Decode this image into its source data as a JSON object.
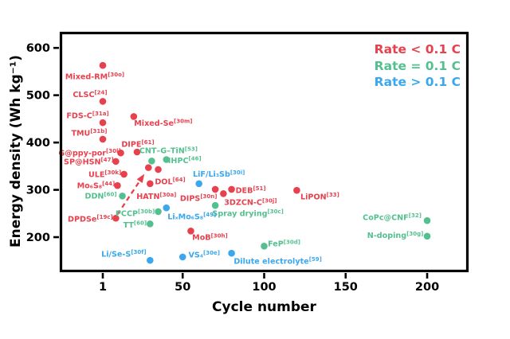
{
  "figure": {
    "x_title": "Cycle number",
    "y_title": "Energy density (Wh kg⁻¹)",
    "background": "#ffffff",
    "frame_color": "#000000"
  },
  "legend": {
    "items": [
      {
        "label": "Rate < 0.1 C",
        "color": "#e8414e"
      },
      {
        "label": "Rate = 0.1 C",
        "color": "#55c08f"
      },
      {
        "label": "Rate > 0.1 C",
        "color": "#3aa7ee"
      }
    ]
  },
  "chart_data": {
    "type": "scatter",
    "title": "",
    "xlabel": "Cycle number",
    "ylabel": "Energy density (Wh kg⁻¹)",
    "x_ticks": [
      1,
      50,
      100,
      150,
      200
    ],
    "y_ticks": [
      200,
      300,
      400,
      500,
      600
    ],
    "xlim": [
      -25.4,
      225.4
    ],
    "ylim": [
      126,
      634
    ],
    "grid": false,
    "legend_position": "top-right-inside",
    "series": [
      {
        "name": "Rate < 0.1 C",
        "color": "#e8414e",
        "points": [
          {
            "label": "Mixed-RM",
            "ref": "30o",
            "cycle": 1,
            "energy": 563,
            "dx": -10,
            "dy": 14
          },
          {
            "label": "CLSC",
            "ref": "24",
            "cycle": 1,
            "energy": 487,
            "dx": -16,
            "dy": -9
          },
          {
            "label": "FDS-C",
            "ref": "31a",
            "cycle": 1,
            "energy": 442,
            "dx": -19,
            "dy": -9
          },
          {
            "label": "Mixed-Se",
            "ref": "30m",
            "cycle": 20,
            "energy": 455,
            "dx": 37,
            "dy": 8
          },
          {
            "label": "TMU",
            "ref": "31b",
            "cycle": 1,
            "energy": 407,
            "dx": -17,
            "dy": -8
          },
          {
            "label": "DIPE",
            "ref": "61",
            "cycle": 22,
            "energy": 380,
            "dx": 1,
            "dy": -10
          },
          {
            "label": "G@ppy-por",
            "ref": "30l",
            "cycle": 12,
            "energy": 378,
            "dx": -39,
            "dy": 0
          },
          {
            "label": "SP@HSN",
            "ref": "47",
            "cycle": 9,
            "energy": 360,
            "dx": -34,
            "dy": 0
          },
          {
            "label": "ULE",
            "ref": "30k",
            "cycle": 14,
            "energy": 333,
            "dx": -24,
            "dy": 0
          },
          {
            "label": "Mo₆S₈",
            "ref": "44",
            "cycle": 10,
            "energy": 309,
            "dx": -27,
            "dy": 0
          },
          {
            "label": "",
            "ref": "",
            "cycle": 29,
            "energy": 347,
            "dx": 0,
            "dy": 0
          },
          {
            "label": "DOL",
            "ref": "64",
            "cycle": 35,
            "energy": 343,
            "dx": 15,
            "dy": 15
          },
          {
            "label": "HATN",
            "ref": "30a",
            "cycle": 30,
            "energy": 313,
            "dx": 8,
            "dy": 16
          },
          {
            "label": "DIPS",
            "ref": "30n",
            "cycle": 70,
            "energy": 301,
            "dx": -21,
            "dy": 11
          },
          {
            "label": "DEB",
            "ref": "51",
            "cycle": 80,
            "energy": 301,
            "dx": 24,
            "dy": 1
          },
          {
            "label": "3DZCN-C",
            "ref": "30j",
            "cycle": 75,
            "energy": 292,
            "dx": 34,
            "dy": 11
          },
          {
            "label": "LiPON",
            "ref": "33",
            "cycle": 120,
            "energy": 299,
            "dx": 29,
            "dy": 8
          },
          {
            "label": "MoB",
            "ref": "30h",
            "cycle": 55,
            "energy": 213,
            "dx": 24,
            "dy": 8
          },
          {
            "label": "DPDSe",
            "ref": "19c",
            "cycle": 9,
            "energy": 240,
            "dx": -32,
            "dy": 1
          }
        ]
      },
      {
        "name": "Rate = 0.1 C",
        "color": "#55c08f",
        "points": [
          {
            "label": "CNT–G–TiN",
            "ref": "53",
            "cycle": 31,
            "energy": 361,
            "dx": 21,
            "dy": -13
          },
          {
            "label": "IHPC",
            "ref": "46",
            "cycle": 40,
            "energy": 364,
            "dx": 23,
            "dy": 1
          },
          {
            "label": "DDN",
            "ref": "60",
            "cycle": 13,
            "energy": 287,
            "dx": -27,
            "dy": 0
          },
          {
            "label": "PCCP",
            "ref": "30b",
            "cycle": 35,
            "energy": 254,
            "dx": -29,
            "dy": 2
          },
          {
            "label": "TT",
            "ref": "60",
            "cycle": 30,
            "energy": 228,
            "dx": -19,
            "dy": 1
          },
          {
            "label": "Spray drying",
            "ref": "30c",
            "cycle": 70,
            "energy": 267,
            "dx": 41,
            "dy": 10
          },
          {
            "label": "FeP",
            "ref": "30d",
            "cycle": 100,
            "energy": 181,
            "dx": 25,
            "dy": -3
          },
          {
            "label": "CoPc@CNF",
            "ref": "32",
            "cycle": 200,
            "energy": 235,
            "dx": -44,
            "dy": -4
          },
          {
            "label": "N-doping",
            "ref": "30g",
            "cycle": 200,
            "energy": 202,
            "dx": -40,
            "dy": -1
          }
        ]
      },
      {
        "name": "Rate > 0.1 C",
        "color": "#3aa7ee",
        "points": [
          {
            "label": "LiF/Li₃Sb",
            "ref": "30i",
            "cycle": 60,
            "energy": 313,
            "dx": 25,
            "dy": -12
          },
          {
            "label": "LiₓMo₆S₈",
            "ref": "49",
            "cycle": 40,
            "energy": 262,
            "dx": 32,
            "dy": 11
          },
          {
            "label": "Li/Se-S",
            "ref": "30f",
            "cycle": 30,
            "energy": 151,
            "dx": -33,
            "dy": -8
          },
          {
            "label": "VS₄",
            "ref": "30e",
            "cycle": 50,
            "energy": 158,
            "dx": 27,
            "dy": -3
          },
          {
            "label": "Dilute electrolyte",
            "ref": "59",
            "cycle": 80,
            "energy": 166,
            "dx": 58,
            "dy": 10
          }
        ]
      }
    ],
    "annotation_arrow": {
      "style": "dashed",
      "color": "#e8414e",
      "from": {
        "cycle": 10,
        "energy": 248
      },
      "to": {
        "cycle": 26,
        "energy": 331
      }
    }
  }
}
